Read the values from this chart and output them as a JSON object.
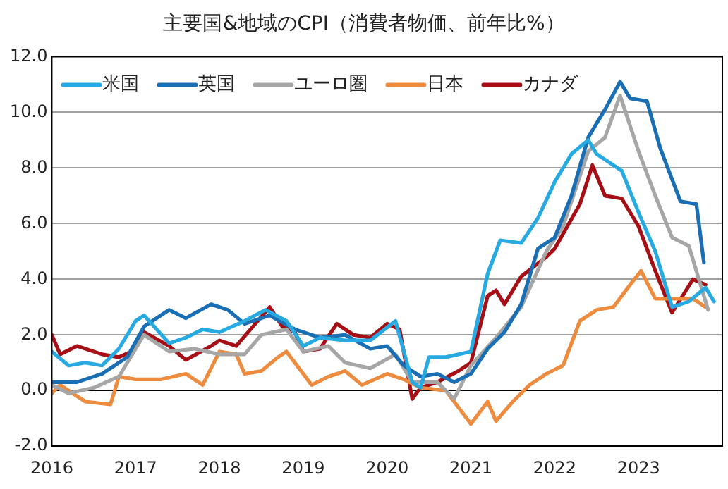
{
  "chart_data": {
    "type": "line",
    "title": "主要国&地域のCPI（消費者物価、前年比%）",
    "xlim": [
      2016,
      2024
    ],
    "xticks": [
      2016,
      2017,
      2018,
      2019,
      2020,
      2021,
      2022,
      2023
    ],
    "ylim": [
      -2,
      12
    ],
    "yticks": [
      {
        "value": -2,
        "label": "-2.0"
      },
      {
        "value": 0,
        "label": "0.0"
      },
      {
        "value": 2,
        "label": "2.0"
      },
      {
        "value": 4,
        "label": "4.0"
      },
      {
        "value": 6,
        "label": "6.0"
      },
      {
        "value": 8,
        "label": "8.0"
      },
      {
        "value": 10,
        "label": "10.0"
      },
      {
        "value": 12,
        "label": "12.0"
      }
    ],
    "grid": "y",
    "legend": "top left",
    "marker": "none",
    "line_style": "solid",
    "series": [
      {
        "name": "米国",
        "color": "#27a9e1",
        "x": [
          2016.0,
          2016.2,
          2016.4,
          2016.6,
          2016.8,
          2017.0,
          2017.1,
          2017.4,
          2017.6,
          2017.8,
          2018.0,
          2018.3,
          2018.55,
          2018.8,
          2019.0,
          2019.2,
          2019.5,
          2019.8,
          2020.1,
          2020.3,
          2020.4,
          2020.5,
          2020.7,
          2021.0,
          2021.2,
          2021.35,
          2021.6,
          2021.8,
          2022.0,
          2022.2,
          2022.4,
          2022.5,
          2022.8,
          2023.0,
          2023.2,
          2023.4,
          2023.6,
          2023.8,
          2023.9
        ],
        "values": [
          1.4,
          0.9,
          1.0,
          0.9,
          1.5,
          2.5,
          2.7,
          1.7,
          1.9,
          2.2,
          2.1,
          2.5,
          2.9,
          2.5,
          1.6,
          1.9,
          1.8,
          1.8,
          2.5,
          0.3,
          0.1,
          1.2,
          1.2,
          1.4,
          4.2,
          5.4,
          5.3,
          6.2,
          7.5,
          8.5,
          9.0,
          8.5,
          7.9,
          6.4,
          5.0,
          3.0,
          3.2,
          3.7,
          3.2
        ]
      },
      {
        "name": "英国",
        "color": "#1a6eb4",
        "x": [
          2016.0,
          2016.3,
          2016.6,
          2016.9,
          2017.1,
          2017.4,
          2017.6,
          2017.9,
          2018.1,
          2018.3,
          2018.6,
          2018.9,
          2019.2,
          2019.5,
          2019.8,
          2020.0,
          2020.2,
          2020.4,
          2020.6,
          2020.8,
          2021.0,
          2021.2,
          2021.4,
          2021.6,
          2021.8,
          2022.0,
          2022.2,
          2022.4,
          2022.6,
          2022.78,
          2022.9,
          2023.1,
          2023.26,
          2023.5,
          2023.69,
          2023.78
        ],
        "values": [
          0.3,
          0.3,
          0.6,
          1.2,
          2.3,
          2.9,
          2.6,
          3.1,
          2.9,
          2.4,
          2.7,
          2.2,
          1.9,
          2.0,
          1.5,
          1.6,
          0.9,
          0.5,
          0.6,
          0.3,
          0.6,
          1.5,
          2.1,
          3.1,
          5.1,
          5.5,
          7.0,
          9.1,
          10.1,
          11.1,
          10.5,
          10.4,
          8.7,
          6.8,
          6.7,
          4.6
        ]
      },
      {
        "name": "ユーロ圏",
        "color": "#a6a6a6",
        "x": [
          2016.0,
          2016.2,
          2016.5,
          2016.8,
          2017.1,
          2017.4,
          2017.7,
          2018.0,
          2018.3,
          2018.5,
          2018.8,
          2019.0,
          2019.3,
          2019.5,
          2019.8,
          2020.1,
          2020.3,
          2020.6,
          2020.8,
          2021.0,
          2021.3,
          2021.6,
          2021.9,
          2022.1,
          2022.4,
          2022.6,
          2022.78,
          2023.0,
          2023.2,
          2023.4,
          2023.6,
          2023.83
        ],
        "values": [
          0.2,
          -0.1,
          0.1,
          0.5,
          2.0,
          1.4,
          1.5,
          1.3,
          1.3,
          2.0,
          2.2,
          1.4,
          1.6,
          1.0,
          0.8,
          1.3,
          0.3,
          0.3,
          -0.3,
          0.9,
          1.9,
          3.0,
          5.0,
          5.9,
          8.6,
          9.1,
          10.6,
          8.6,
          7.0,
          5.5,
          5.2,
          2.9
        ]
      },
      {
        "name": "日本",
        "color": "#ed8b3f",
        "x": [
          2016.0,
          2016.1,
          2016.4,
          2016.7,
          2016.8,
          2017.0,
          2017.3,
          2017.6,
          2017.8,
          2018.0,
          2018.2,
          2018.3,
          2018.5,
          2018.7,
          2018.8,
          2019.1,
          2019.3,
          2019.5,
          2019.7,
          2020.0,
          2020.2,
          2020.4,
          2020.7,
          2021.0,
          2021.2,
          2021.3,
          2021.5,
          2021.7,
          2021.9,
          2022.1,
          2022.3,
          2022.5,
          2022.7,
          2022.9,
          2023.03,
          2023.2,
          2023.5,
          2023.65,
          2023.8
        ],
        "values": [
          -0.1,
          0.2,
          -0.4,
          -0.5,
          0.5,
          0.4,
          0.4,
          0.6,
          0.2,
          1.4,
          1.3,
          0.6,
          0.7,
          1.2,
          1.4,
          0.2,
          0.5,
          0.7,
          0.2,
          0.6,
          0.4,
          0.1,
          0.0,
          -1.2,
          -0.4,
          -1.1,
          -0.4,
          0.2,
          0.6,
          0.9,
          2.5,
          2.9,
          3.0,
          3.8,
          4.3,
          3.3,
          3.3,
          3.3,
          3.0
        ]
      },
      {
        "name": "カナダ",
        "color": "#a50f15",
        "x": [
          2016.0,
          2016.1,
          2016.3,
          2016.6,
          2016.8,
          2016.95,
          2017.1,
          2017.4,
          2017.6,
          2017.9,
          2018.0,
          2018.2,
          2018.4,
          2018.6,
          2018.75,
          2018.9,
          2019.0,
          2019.2,
          2019.4,
          2019.6,
          2019.8,
          2020.0,
          2020.15,
          2020.3,
          2020.4,
          2020.6,
          2020.85,
          2021.0,
          2021.2,
          2021.3,
          2021.4,
          2021.6,
          2021.9,
          2022.0,
          2022.3,
          2022.45,
          2022.6,
          2022.8,
          2023.0,
          2023.2,
          2023.4,
          2023.65,
          2023.8
        ],
        "values": [
          2.0,
          1.3,
          1.6,
          1.3,
          1.2,
          1.4,
          2.1,
          1.6,
          1.1,
          1.6,
          1.8,
          1.6,
          2.3,
          3.0,
          2.3,
          2.1,
          1.4,
          1.5,
          2.4,
          2.0,
          1.9,
          2.4,
          2.2,
          -0.3,
          0.1,
          0.3,
          0.7,
          1.0,
          3.4,
          3.6,
          3.1,
          4.1,
          4.8,
          5.1,
          6.7,
          8.1,
          7.0,
          6.9,
          5.9,
          4.3,
          2.8,
          4.0,
          3.8
        ]
      }
    ]
  }
}
